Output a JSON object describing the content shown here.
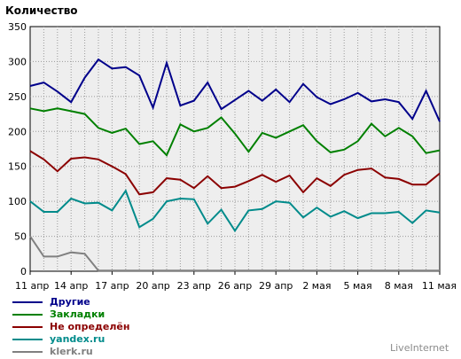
{
  "chart_data": {
    "type": "line",
    "title": "Количество",
    "ylim": [
      0,
      350
    ],
    "yticks": [
      0,
      50,
      100,
      150,
      200,
      250,
      300,
      350
    ],
    "x_tick_labels": [
      "11 апр",
      "14 апр",
      "17 апр",
      "20 апр",
      "23 апр",
      "26 апр",
      "29 апр",
      "2 мая",
      "5 мая",
      "8 мая",
      "11 мая"
    ],
    "x_tick_step": 3,
    "grid": true,
    "legend_position": "bottom-left",
    "series": [
      {
        "name": "Другие",
        "color": "#00008b",
        "values": [
          265,
          270,
          257,
          242,
          277,
          303,
          290,
          292,
          280,
          234,
          298,
          237,
          244,
          270,
          232,
          245,
          258,
          244,
          260,
          242,
          268,
          249,
          239,
          246,
          255,
          243,
          246,
          242,
          218,
          258,
          214
        ]
      },
      {
        "name": "Закладки",
        "color": "#008000",
        "values": [
          233,
          229,
          233,
          229,
          225,
          205,
          198,
          204,
          182,
          186,
          166,
          210,
          200,
          205,
          220,
          197,
          171,
          198,
          191,
          200,
          209,
          186,
          170,
          174,
          186,
          211,
          193,
          205,
          193,
          169,
          173
        ]
      },
      {
        "name": "Не определён",
        "color": "#8b0000",
        "values": [
          172,
          160,
          143,
          161,
          163,
          160,
          150,
          139,
          110,
          113,
          133,
          131,
          119,
          136,
          119,
          121,
          129,
          138,
          128,
          137,
          113,
          133,
          122,
          138,
          145,
          147,
          134,
          132,
          124,
          124,
          140
        ]
      },
      {
        "name": "yandex.ru",
        "color": "#008b8b",
        "values": [
          100,
          85,
          85,
          104,
          97,
          98,
          87,
          115,
          63,
          75,
          100,
          104,
          103,
          68,
          88,
          58,
          87,
          89,
          100,
          98,
          77,
          91,
          78,
          86,
          76,
          83,
          83,
          85,
          69,
          87,
          84
        ]
      },
      {
        "name": "klerk.ru",
        "color": "#808080",
        "values": [
          50,
          21,
          21,
          27,
          25,
          1,
          1,
          1,
          1,
          1,
          1,
          1,
          1,
          1,
          1,
          1,
          1,
          1,
          1,
          1,
          1,
          1,
          1,
          1,
          1,
          1,
          1,
          1,
          1,
          1,
          1
        ]
      }
    ]
  },
  "footer": {
    "brand": "LiveInternet"
  }
}
